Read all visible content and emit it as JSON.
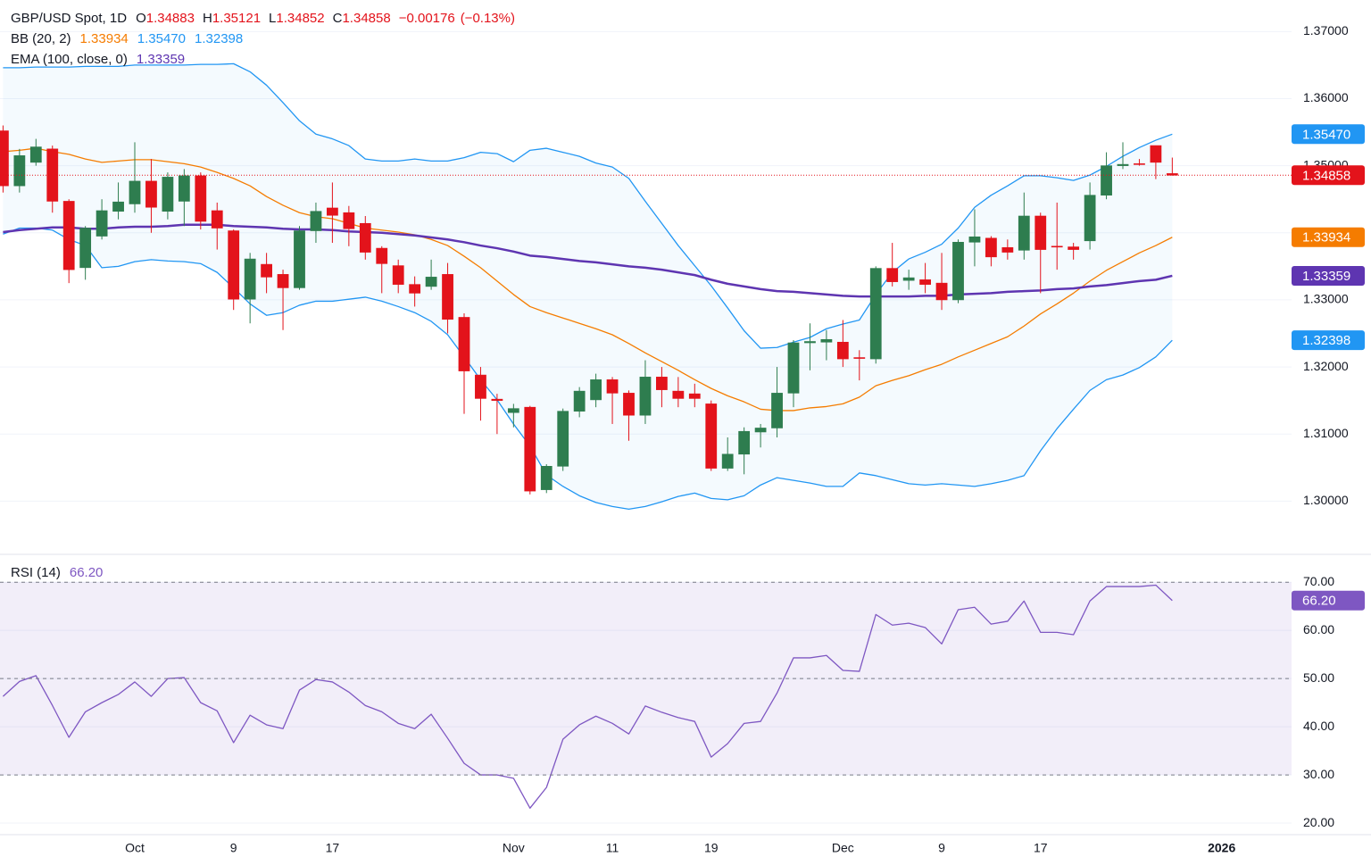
{
  "chart_data": {
    "type": "candlestick",
    "title": "GBP/USD Spot, 1D",
    "ohlc_labels": [
      "O",
      "H",
      "L",
      "C"
    ],
    "change": "−0.00176",
    "change_pct": "(−0.13%)",
    "up_color": "#2e7d4f",
    "down_color": "#e3131b",
    "grid": true,
    "categories": [
      null,
      null,
      null,
      null,
      null,
      null,
      null,
      null,
      "Oct",
      null,
      null,
      null,
      null,
      null,
      "9",
      null,
      null,
      null,
      null,
      null,
      "17",
      null,
      null,
      null,
      null,
      null,
      null,
      null,
      null,
      null,
      null,
      "Nov",
      null,
      null,
      null,
      null,
      null,
      "11",
      null,
      null,
      null,
      null,
      null,
      "19",
      null,
      null,
      null,
      null,
      null,
      null,
      null,
      "Dec",
      null,
      null,
      null,
      null,
      null,
      "9",
      null,
      null,
      null,
      null,
      null,
      "17",
      null,
      null,
      null,
      null,
      null,
      null,
      null,
      null,
      null,
      null,
      "2026"
    ],
    "open": [
      1.3552,
      1.347,
      1.3505,
      1.3525,
      1.3447,
      1.3348,
      1.3395,
      1.3432,
      1.3443,
      1.3477,
      1.3432,
      1.3447,
      1.3485,
      1.3433,
      1.3403,
      1.3301,
      1.3353,
      1.3338,
      1.3318,
      1.3403,
      1.3437,
      1.343,
      1.3414,
      1.3377,
      1.3351,
      1.3323,
      1.332,
      1.3338,
      1.3274,
      1.3188,
      1.3152,
      1.3132,
      1.314,
      1.3017,
      1.3052,
      1.3134,
      1.3151,
      1.3181,
      1.3161,
      1.3128,
      1.3185,
      1.3164,
      1.316,
      1.3145,
      1.3049,
      1.307,
      1.3103,
      1.3109,
      1.3161,
      1.3236,
      1.3237,
      1.3237,
      1.3214,
      1.3212,
      1.3347,
      1.3329,
      1.333,
      1.3325,
      1.33,
      1.3386,
      1.3392,
      1.3378,
      1.3374,
      1.3425,
      1.338,
      1.3379,
      1.3388,
      1.3456,
      1.35,
      1.3503,
      1.353,
      1.34883,
      null,
      null,
      null
    ],
    "high": [
      1.356,
      1.3525,
      1.354,
      1.353,
      1.345,
      1.341,
      1.345,
      1.3475,
      1.3535,
      1.351,
      1.349,
      1.3495,
      1.349,
      1.3445,
      1.3405,
      1.337,
      1.337,
      1.3345,
      1.341,
      1.3445,
      1.3475,
      1.344,
      1.3425,
      1.338,
      1.336,
      1.3335,
      1.336,
      1.3355,
      1.328,
      1.32,
      1.316,
      1.3145,
      1.3142,
      1.3055,
      1.3138,
      1.317,
      1.319,
      1.3185,
      1.3165,
      1.321,
      1.32,
      1.3185,
      1.3175,
      1.315,
      1.3095,
      1.311,
      1.3115,
      1.32,
      1.324,
      1.3265,
      1.3255,
      1.327,
      1.3225,
      1.335,
      1.3385,
      1.3345,
      1.3355,
      1.337,
      1.339,
      1.3435,
      1.3395,
      1.339,
      1.346,
      1.343,
      1.3445,
      1.3385,
      1.3475,
      1.352,
      1.3535,
      1.351,
      1.353,
      1.35121,
      null,
      null,
      null
    ],
    "low": [
      1.346,
      1.346,
      1.35,
      1.343,
      1.3325,
      1.333,
      1.339,
      1.342,
      1.343,
      1.34,
      1.342,
      1.341,
      1.3405,
      1.3375,
      1.3285,
      1.3265,
      1.331,
      1.3255,
      1.3315,
      1.3385,
      1.3385,
      1.338,
      1.336,
      1.331,
      1.331,
      1.329,
      1.3315,
      1.325,
      1.313,
      1.312,
      1.31,
      1.311,
      1.301,
      1.3012,
      1.3045,
      1.3125,
      1.314,
      1.3115,
      1.309,
      1.3115,
      1.314,
      1.314,
      1.314,
      1.3045,
      1.3045,
      1.304,
      1.308,
      1.3095,
      1.314,
      1.3195,
      1.321,
      1.32,
      1.318,
      1.3205,
      1.332,
      1.3315,
      1.331,
      1.3285,
      1.3295,
      1.335,
      1.335,
      1.336,
      1.336,
      1.331,
      1.3345,
      1.336,
      1.3375,
      1.345,
      1.3495,
      1.35,
      1.348,
      1.34852,
      null,
      null,
      null
    ],
    "close": [
      1.347,
      1.3515,
      1.3528,
      1.3447,
      1.3345,
      1.3407,
      1.3433,
      1.3446,
      1.3477,
      1.3438,
      1.3483,
      1.3485,
      1.3417,
      1.3407,
      1.3301,
      1.3361,
      1.3334,
      1.3318,
      1.3403,
      1.3432,
      1.3426,
      1.3406,
      1.3371,
      1.3354,
      1.3323,
      1.331,
      1.3334,
      1.3271,
      1.3194,
      1.3153,
      1.315,
      1.3138,
      1.3015,
      1.3052,
      1.3134,
      1.3164,
      1.3181,
      1.3161,
      1.3128,
      1.3185,
      1.3166,
      1.3153,
      1.3153,
      1.3049,
      1.307,
      1.3104,
      1.3109,
      1.3161,
      1.3236,
      1.3238,
      1.3241,
      1.3212,
      1.3213,
      1.3347,
      1.3327,
      1.3333,
      1.3323,
      1.33,
      1.3386,
      1.3394,
      1.3364,
      1.3371,
      1.3425,
      1.3375,
      1.3379,
      1.3375,
      1.3456,
      1.35,
      1.3502,
      1.3502,
      1.3505,
      1.34858,
      null,
      null,
      null
    ],
    "ylim": [
      1.2922,
      1.3747
    ],
    "yticks": [
      {
        "value": 1.3,
        "label": "1.30000"
      },
      {
        "value": 1.31,
        "label": "1.31000"
      },
      {
        "value": 1.32,
        "label": "1.32000"
      },
      {
        "value": 1.33,
        "label": "1.33000"
      },
      {
        "value": 1.34,
        "label": "1.34000"
      },
      {
        "value": 1.35,
        "label": "1.35000"
      },
      {
        "value": 1.36,
        "label": "1.36000"
      },
      {
        "value": 1.37,
        "label": "1.37000"
      }
    ],
    "band_fill": "rgba(33,150,243,0.05)",
    "overlays": [
      {
        "label": "BB (20, 2)",
        "lines": [
          {
            "color": "#f57c00",
            "legend_value": "1.33934",
            "values": [
              1.3521,
              1.3523,
              1.3526,
              1.3521,
              1.3517,
              1.351,
              1.3505,
              1.3507,
              1.3509,
              1.3509,
              1.3506,
              1.3503,
              1.3498,
              1.349,
              1.3481,
              1.347,
              1.3454,
              1.3441,
              1.343,
              1.3424,
              1.3421,
              1.3414,
              1.3407,
              1.3404,
              1.3401,
              1.3397,
              1.339,
              1.3381,
              1.3365,
              1.3348,
              1.3328,
              1.3308,
              1.329,
              1.3281,
              1.3273,
              1.3265,
              1.3257,
              1.3248,
              1.3235,
              1.3221,
              1.3208,
              1.3195,
              1.3181,
              1.3168,
              1.3157,
              1.3148,
              1.3137,
              1.3135,
              1.3135,
              1.3139,
              1.3141,
              1.3145,
              1.3155,
              1.3172,
              1.318,
              1.3187,
              1.3196,
              1.3204,
              1.3215,
              1.3225,
              1.3235,
              1.3245,
              1.3261,
              1.3279,
              1.3294,
              1.331,
              1.3328,
              1.3344,
              1.3357,
              1.337,
              1.3381,
              1.33934,
              null,
              null,
              null
            ]
          },
          {
            "color": "#2196f3",
            "legend_value": "1.35470",
            "values": [
              1.3646,
              1.3646,
              1.3647,
              1.3647,
              1.3647,
              1.3648,
              1.3648,
              1.3648,
              1.365,
              1.365,
              1.365,
              1.365,
              1.3651,
              1.3651,
              1.3652,
              1.364,
              1.362,
              1.3594,
              1.3567,
              1.3547,
              1.354,
              1.353,
              1.351,
              1.3507,
              1.3507,
              1.351,
              1.3507,
              1.3507,
              1.3512,
              1.352,
              1.3518,
              1.3506,
              1.3523,
              1.3526,
              1.352,
              1.3514,
              1.3504,
              1.3498,
              1.3481,
              1.3447,
              1.3414,
              1.3381,
              1.3351,
              1.3321,
              1.3288,
              1.3254,
              1.3228,
              1.3229,
              1.3237,
              1.3244,
              1.3257,
              1.3264,
              1.327,
              1.3308,
              1.3341,
              1.3361,
              1.3371,
              1.3383,
              1.3407,
              1.3438,
              1.3456,
              1.347,
              1.3485,
              1.3485,
              1.3482,
              1.3478,
              1.3486,
              1.3499,
              1.3514,
              1.3527,
              1.3538,
              1.3547,
              null,
              null,
              null
            ]
          },
          {
            "color": "#2196f3",
            "legend_value": "1.32398",
            "values": [
              1.3398,
              1.3407,
              1.3407,
              1.3404,
              1.339,
              1.3381,
              1.3348,
              1.335,
              1.3357,
              1.336,
              1.3358,
              1.3357,
              1.3354,
              1.3341,
              1.3318,
              1.3294,
              1.3277,
              1.3281,
              1.3292,
              1.3298,
              1.3298,
              1.3301,
              1.3304,
              1.3298,
              1.329,
              1.3281,
              1.3268,
              1.3248,
              1.3215,
              1.3181,
              1.3151,
              1.3115,
              1.3082,
              1.3039,
              1.3022,
              1.3008,
              1.2998,
              1.2992,
              1.2988,
              1.2992,
              1.2999,
              1.3007,
              1.3012,
              1.3004,
              1.3002,
              1.3008,
              1.3024,
              1.3035,
              1.3031,
              1.3027,
              1.3022,
              1.3022,
              1.3042,
              1.3038,
              1.3032,
              1.3026,
              1.3024,
              1.3026,
              1.3024,
              1.3022,
              1.3026,
              1.3031,
              1.3038,
              1.3075,
              1.3108,
              1.3137,
              1.3165,
              1.3181,
              1.3188,
              1.3199,
              1.3215,
              1.32398,
              null,
              null,
              null
            ]
          }
        ]
      },
      {
        "label": "EMA (100, close, 0)",
        "lines": [
          {
            "color": "#5e35b1",
            "legend_value": "1.33359",
            "values": [
              1.3401,
              1.3404,
              1.3406,
              1.3408,
              1.3408,
              1.3406,
              1.3406,
              1.3408,
              1.3409,
              1.3409,
              1.341,
              1.3412,
              1.3412,
              1.3412,
              1.341,
              1.3409,
              1.3408,
              1.3406,
              1.3405,
              1.3405,
              1.3404,
              1.3402,
              1.3401,
              1.34,
              1.3398,
              1.3396,
              1.3393,
              1.339,
              1.3386,
              1.3381,
              1.3377,
              1.3372,
              1.3366,
              1.3364,
              1.3361,
              1.3358,
              1.3356,
              1.3353,
              1.335,
              1.3348,
              1.3345,
              1.3341,
              1.3337,
              1.333,
              1.3324,
              1.332,
              1.3316,
              1.3313,
              1.3312,
              1.331,
              1.3308,
              1.3306,
              1.3305,
              1.3305,
              1.3305,
              1.3305,
              1.3306,
              1.3306,
              1.3308,
              1.3309,
              1.331,
              1.3312,
              1.3313,
              1.3314,
              1.3316,
              1.3317,
              1.332,
              1.3322,
              1.3325,
              1.3328,
              1.333,
              1.33359,
              null,
              null,
              null
            ]
          }
        ]
      }
    ],
    "panels": [
      {
        "type": "line",
        "title": "RSI (14)",
        "legend_value": "66.20",
        "color": "#7e57c2",
        "grid": true,
        "band": [
          30,
          70
        ],
        "band_color": "rgba(126,87,194,0.1)",
        "levels": [
          30,
          50,
          70
        ],
        "ylim": [
          17.6,
          75.6
        ],
        "yticks": [
          {
            "value": 20,
            "label": "20.00"
          },
          {
            "value": 30,
            "label": "30.00"
          },
          {
            "value": 40,
            "label": "40.00"
          },
          {
            "value": 50,
            "label": "50.00"
          },
          {
            "value": 60,
            "label": "60.00"
          },
          {
            "value": 70,
            "label": "70.00"
          }
        ],
        "values": [
          46.3,
          49.4,
          50.6,
          44.4,
          37.8,
          43.1,
          45.0,
          46.7,
          49.3,
          46.3,
          50.0,
          50.2,
          45.0,
          43.3,
          36.7,
          42.4,
          40.4,
          39.6,
          47.6,
          49.8,
          49.3,
          47.2,
          44.4,
          43.1,
          40.7,
          39.6,
          42.6,
          37.6,
          32.4,
          30.0,
          30.0,
          29.3,
          23.1,
          27.4,
          37.4,
          40.4,
          42.2,
          40.7,
          38.5,
          44.3,
          43.0,
          41.9,
          41.1,
          33.7,
          36.5,
          40.7,
          41.1,
          47.0,
          54.3,
          54.3,
          54.8,
          51.7,
          51.5,
          63.3,
          61.1,
          61.5,
          60.6,
          57.2,
          64.3,
          64.8,
          61.3,
          61.9,
          66.1,
          59.6,
          59.6,
          59.1,
          66.1,
          69.1,
          69.1,
          69.1,
          69.4,
          66.2,
          null,
          null,
          null
        ]
      }
    ]
  }
}
